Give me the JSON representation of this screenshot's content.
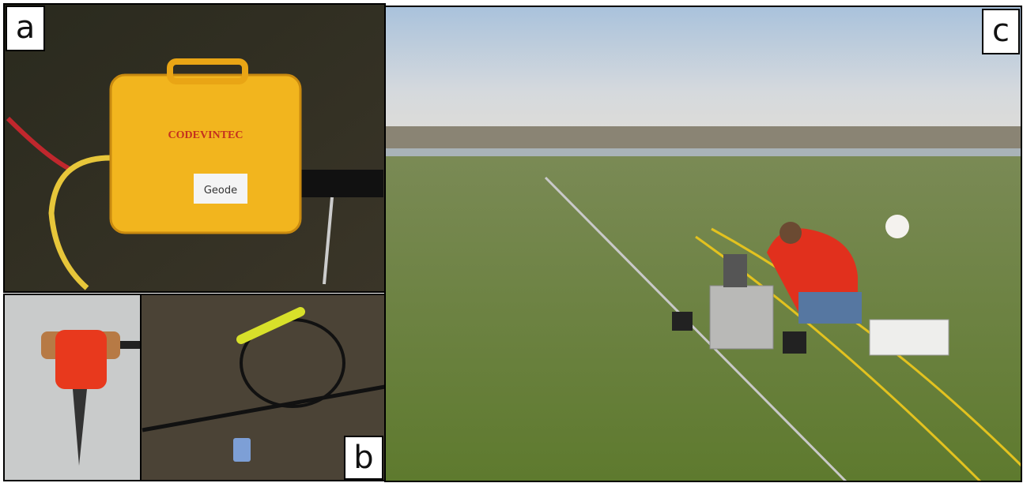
{
  "panels": [
    {
      "label": "a",
      "box_brand": "CODEVINTEC",
      "box_tag": "Geode"
    },
    {
      "label": "b"
    },
    {
      "label": "c"
    }
  ]
}
